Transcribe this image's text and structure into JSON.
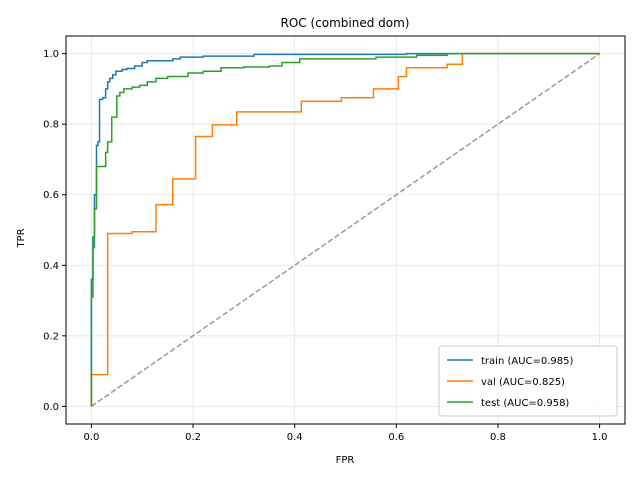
{
  "chart_data": {
    "type": "line",
    "title": "ROC (combined dom)",
    "xlabel": "FPR",
    "ylabel": "TPR",
    "xlim": [
      -0.05,
      1.05
    ],
    "ylim": [
      -0.05,
      1.05
    ],
    "xticks": [
      0.0,
      0.2,
      0.4,
      0.6,
      0.8,
      1.0
    ],
    "yticks": [
      0.0,
      0.2,
      0.4,
      0.6,
      0.8,
      1.0
    ],
    "xtick_labels": [
      "0.0",
      "0.2",
      "0.4",
      "0.6",
      "0.8",
      "1.0"
    ],
    "ytick_labels": [
      "0.0",
      "0.2",
      "0.4",
      "0.6",
      "0.8",
      "1.0"
    ],
    "grid": true,
    "legend_position": "lower-right",
    "series": [
      {
        "name": "train (AUC=0.985)",
        "color": "#1f77b4",
        "step": true,
        "points": [
          [
            0.0,
            0.0
          ],
          [
            0.0,
            0.36
          ],
          [
            0.003,
            0.36
          ],
          [
            0.003,
            0.48
          ],
          [
            0.006,
            0.48
          ],
          [
            0.006,
            0.6
          ],
          [
            0.01,
            0.6
          ],
          [
            0.01,
            0.74
          ],
          [
            0.013,
            0.74
          ],
          [
            0.013,
            0.75
          ],
          [
            0.016,
            0.75
          ],
          [
            0.016,
            0.87
          ],
          [
            0.022,
            0.87
          ],
          [
            0.022,
            0.875
          ],
          [
            0.028,
            0.875
          ],
          [
            0.028,
            0.9
          ],
          [
            0.032,
            0.9
          ],
          [
            0.032,
            0.92
          ],
          [
            0.036,
            0.92
          ],
          [
            0.036,
            0.93
          ],
          [
            0.042,
            0.93
          ],
          [
            0.042,
            0.94
          ],
          [
            0.048,
            0.94
          ],
          [
            0.048,
            0.95
          ],
          [
            0.06,
            0.95
          ],
          [
            0.06,
            0.955
          ],
          [
            0.07,
            0.955
          ],
          [
            0.07,
            0.958
          ],
          [
            0.085,
            0.958
          ],
          [
            0.085,
            0.965
          ],
          [
            0.1,
            0.965
          ],
          [
            0.1,
            0.975
          ],
          [
            0.11,
            0.975
          ],
          [
            0.11,
            0.98
          ],
          [
            0.16,
            0.98
          ],
          [
            0.16,
            0.985
          ],
          [
            0.175,
            0.985
          ],
          [
            0.175,
            0.99
          ],
          [
            0.22,
            0.99
          ],
          [
            0.22,
            0.993
          ],
          [
            0.32,
            0.993
          ],
          [
            0.32,
            0.998
          ],
          [
            0.62,
            0.998
          ],
          [
            0.62,
            1.0
          ],
          [
            1.0,
            1.0
          ]
        ]
      },
      {
        "name": "val (AUC=0.825)",
        "color": "#ff7f0e",
        "step": true,
        "points": [
          [
            0.0,
            0.0
          ],
          [
            0.0,
            0.09
          ],
          [
            0.032,
            0.09
          ],
          [
            0.032,
            0.49
          ],
          [
            0.08,
            0.49
          ],
          [
            0.08,
            0.495
          ],
          [
            0.127,
            0.495
          ],
          [
            0.127,
            0.572
          ],
          [
            0.16,
            0.572
          ],
          [
            0.16,
            0.645
          ],
          [
            0.205,
            0.645
          ],
          [
            0.205,
            0.765
          ],
          [
            0.238,
            0.765
          ],
          [
            0.238,
            0.798
          ],
          [
            0.286,
            0.798
          ],
          [
            0.286,
            0.835
          ],
          [
            0.413,
            0.835
          ],
          [
            0.413,
            0.865
          ],
          [
            0.492,
            0.865
          ],
          [
            0.492,
            0.875
          ],
          [
            0.555,
            0.875
          ],
          [
            0.555,
            0.9
          ],
          [
            0.604,
            0.9
          ],
          [
            0.604,
            0.935
          ],
          [
            0.62,
            0.935
          ],
          [
            0.62,
            0.96
          ],
          [
            0.7,
            0.96
          ],
          [
            0.7,
            0.97
          ],
          [
            0.73,
            0.97
          ],
          [
            0.73,
            1.0
          ],
          [
            1.0,
            1.0
          ]
        ]
      },
      {
        "name": "test (AUC=0.958)",
        "color": "#2ca02c",
        "step": true,
        "points": [
          [
            0.0,
            0.0
          ],
          [
            0.0,
            0.31
          ],
          [
            0.003,
            0.31
          ],
          [
            0.003,
            0.45
          ],
          [
            0.006,
            0.45
          ],
          [
            0.006,
            0.56
          ],
          [
            0.01,
            0.56
          ],
          [
            0.01,
            0.68
          ],
          [
            0.028,
            0.68
          ],
          [
            0.028,
            0.72
          ],
          [
            0.032,
            0.72
          ],
          [
            0.032,
            0.75
          ],
          [
            0.04,
            0.75
          ],
          [
            0.04,
            0.82
          ],
          [
            0.05,
            0.82
          ],
          [
            0.05,
            0.88
          ],
          [
            0.056,
            0.88
          ],
          [
            0.056,
            0.89
          ],
          [
            0.064,
            0.89
          ],
          [
            0.064,
            0.9
          ],
          [
            0.08,
            0.9
          ],
          [
            0.08,
            0.905
          ],
          [
            0.095,
            0.905
          ],
          [
            0.095,
            0.91
          ],
          [
            0.11,
            0.91
          ],
          [
            0.11,
            0.92
          ],
          [
            0.127,
            0.92
          ],
          [
            0.127,
            0.93
          ],
          [
            0.15,
            0.93
          ],
          [
            0.15,
            0.935
          ],
          [
            0.19,
            0.935
          ],
          [
            0.19,
            0.945
          ],
          [
            0.22,
            0.945
          ],
          [
            0.22,
            0.95
          ],
          [
            0.255,
            0.95
          ],
          [
            0.255,
            0.96
          ],
          [
            0.3,
            0.96
          ],
          [
            0.3,
            0.962
          ],
          [
            0.35,
            0.962
          ],
          [
            0.35,
            0.965
          ],
          [
            0.375,
            0.965
          ],
          [
            0.375,
            0.975
          ],
          [
            0.41,
            0.975
          ],
          [
            0.41,
            0.985
          ],
          [
            0.56,
            0.985
          ],
          [
            0.56,
            0.99
          ],
          [
            0.64,
            0.99
          ],
          [
            0.64,
            0.995
          ],
          [
            0.7,
            0.995
          ],
          [
            0.7,
            1.0
          ],
          [
            1.0,
            1.0
          ]
        ]
      }
    ],
    "reference_line": {
      "color": "#999999",
      "dashed": true,
      "points": [
        [
          0.0,
          0.0
        ],
        [
          1.0,
          1.0
        ]
      ]
    }
  }
}
